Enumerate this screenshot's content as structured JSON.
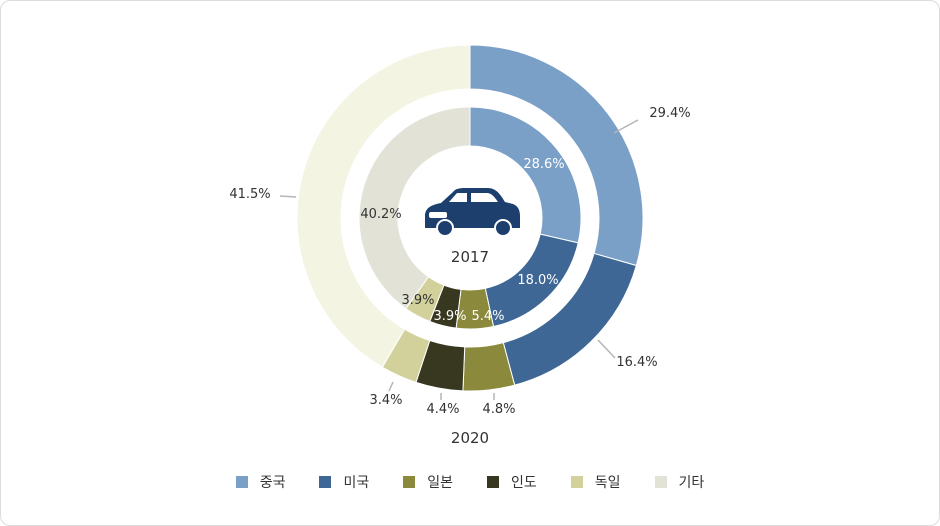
{
  "chart_data": {
    "type": "donut",
    "categories": [
      "중국",
      "미국",
      "일본",
      "인도",
      "독일",
      "기타"
    ],
    "colors": [
      "#7ba0c7",
      "#3e6796",
      "#8b8a3c",
      "#38371f",
      "#d2d09b",
      "#f4f4e2"
    ],
    "inner_colors": [
      "#7ba0c7",
      "#3e6796",
      "#8b8a3c",
      "#38371f",
      "#d2d09b",
      "#e3e2d6"
    ],
    "series": [
      {
        "name": "2017",
        "values": [
          28.6,
          18.0,
          5.4,
          3.9,
          3.9,
          40.2
        ],
        "labels": [
          "28.6%",
          "18.0%",
          "5.4%",
          "3.9%",
          "3.9%",
          "40.2%"
        ]
      },
      {
        "name": "2020",
        "values": [
          29.4,
          16.4,
          4.8,
          4.4,
          3.4,
          41.5
        ],
        "labels": [
          "29.4%",
          "16.4%",
          "4.8%",
          "4.4%",
          "3.4%",
          "41.5%"
        ]
      }
    ],
    "legend_position": "bottom"
  },
  "center_icon": "car-icon",
  "center_label": "2017",
  "outer_label": "2020"
}
